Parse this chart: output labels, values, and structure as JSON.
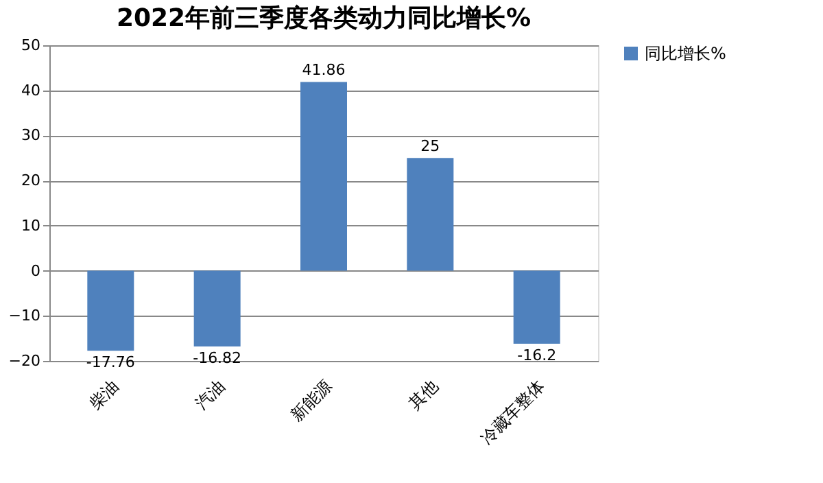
{
  "chart_data": {
    "type": "bar",
    "title": "2022年前三季度各类动力同比增长%",
    "categories": [
      "柴油",
      "汽油",
      "新能源",
      "其他",
      "冷藏车整体"
    ],
    "series": [
      {
        "name": "同比增长%",
        "color": "#4f81bd",
        "values": [
          -17.76,
          -16.82,
          41.86,
          25,
          -16.2
        ]
      }
    ],
    "ylim": [
      -20,
      50
    ],
    "yticks": [
      -20,
      -10,
      0,
      10,
      20,
      30,
      40,
      50
    ],
    "grid": "y",
    "legend": "right",
    "data_labels": true
  }
}
